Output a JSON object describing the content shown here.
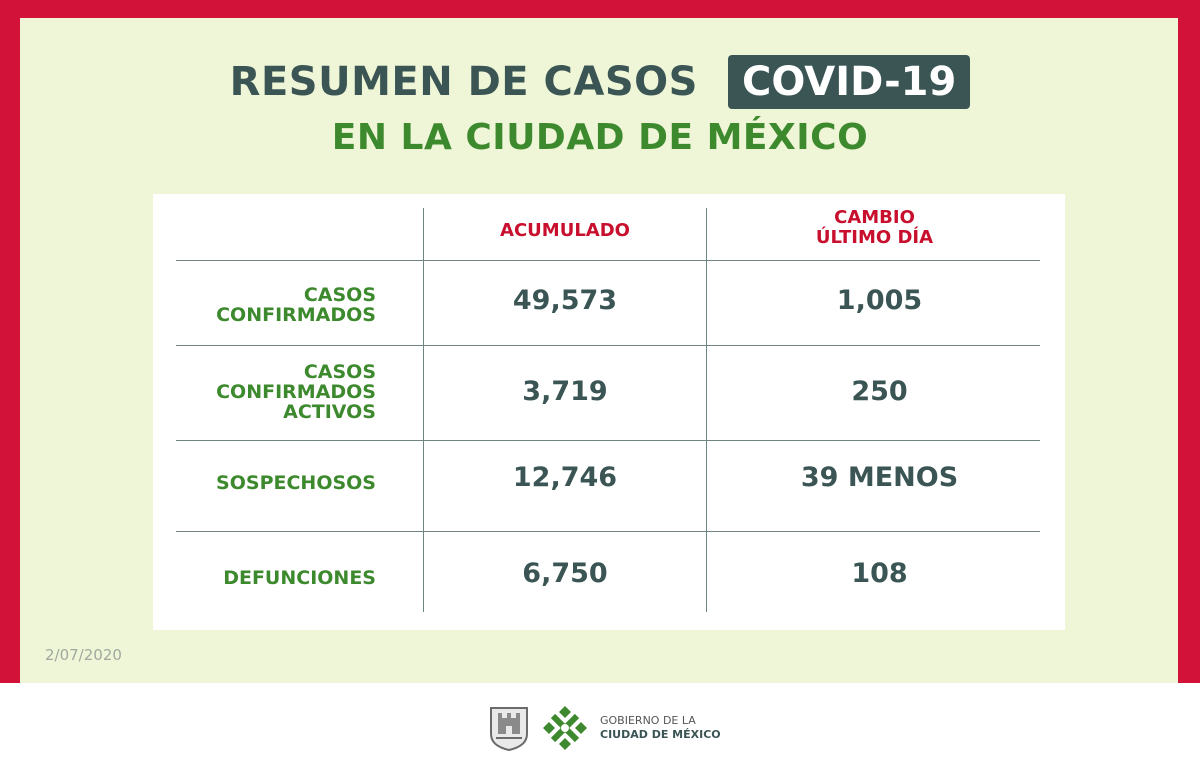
{
  "header": {
    "title": "RESUMEN DE CASOS",
    "badge": "COVID-19",
    "subtitle": "EN LA CIUDAD DE MÉXICO"
  },
  "table": {
    "columns": [
      "ACUMULADO",
      "CAMBIO\nÚLTIMO DÍA"
    ],
    "rows": [
      {
        "label": "CASOS\nCONFIRMADOS",
        "acumulado": "49,573",
        "cambio": "1,005"
      },
      {
        "label": "CASOS\nCONFIRMADOS\nACTIVOS",
        "acumulado": "3,719",
        "cambio": "250"
      },
      {
        "label": "SOSPECHOSOS",
        "acumulado": "12,746",
        "cambio": "39 MENOS"
      },
      {
        "label": "DEFUNCIONES",
        "acumulado": "6,750",
        "cambio": "108"
      }
    ]
  },
  "date": "2/07/2020",
  "footer": {
    "line1": "GOBIERNO DE LA",
    "line2": "CIUDAD DE MÉXICO"
  },
  "colors": {
    "frame": "#d3123a",
    "panel": "#eff6d7",
    "dark_teal": "#3a5554",
    "green": "#3d8a2e",
    "red_heading": "#c8102e"
  }
}
